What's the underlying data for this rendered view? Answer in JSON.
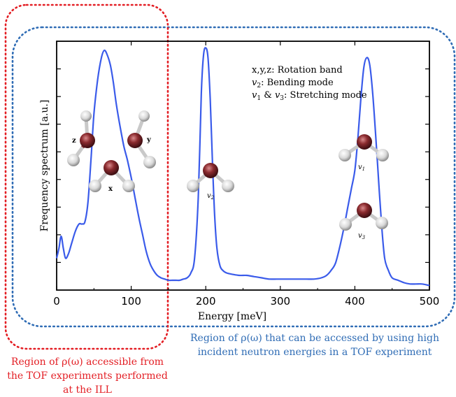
{
  "chart_data": {
    "type": "line",
    "xlabel": "Energy [meV]",
    "ylabel": "Frequency spectrum [a.u.]",
    "xlim": [
      0,
      500
    ],
    "ylim": [
      0,
      1
    ],
    "x_ticks": [
      "0",
      "100",
      "200",
      "300",
      "400",
      "500"
    ],
    "grid": false,
    "series": [
      {
        "color": "#3a5bea",
        "x": [
          0,
          3,
          6,
          9,
          12,
          16,
          20,
          25,
          30,
          34,
          38,
          42,
          46,
          50,
          55,
          60,
          64,
          68,
          72,
          76,
          80,
          85,
          90,
          95,
          100,
          105,
          110,
          115,
          120,
          125,
          130,
          135,
          140,
          145,
          150,
          155,
          160,
          165,
          170,
          175,
          180,
          185,
          190,
          194,
          197,
          200,
          203,
          206,
          209,
          212,
          215,
          219,
          223,
          228,
          235,
          245,
          255,
          265,
          275,
          285,
          295,
          305,
          315,
          325,
          335,
          345,
          355,
          362,
          368,
          374,
          380,
          385,
          390,
          395,
          400,
          404,
          408,
          412,
          416,
          420,
          424,
          428,
          432,
          436,
          440,
          445,
          450,
          458,
          466,
          474,
          482,
          490,
          498,
          500
        ],
        "y": [
          0.13,
          0.17,
          0.22,
          0.17,
          0.13,
          0.15,
          0.19,
          0.24,
          0.27,
          0.27,
          0.28,
          0.36,
          0.53,
          0.72,
          0.86,
          0.95,
          0.98,
          0.96,
          0.92,
          0.85,
          0.76,
          0.67,
          0.59,
          0.53,
          0.46,
          0.38,
          0.3,
          0.23,
          0.16,
          0.11,
          0.08,
          0.06,
          0.05,
          0.045,
          0.04,
          0.04,
          0.04,
          0.04,
          0.045,
          0.05,
          0.07,
          0.13,
          0.38,
          0.8,
          0.96,
          0.99,
          0.95,
          0.78,
          0.52,
          0.3,
          0.17,
          0.1,
          0.08,
          0.07,
          0.065,
          0.06,
          0.06,
          0.055,
          0.05,
          0.045,
          0.045,
          0.045,
          0.045,
          0.045,
          0.045,
          0.045,
          0.05,
          0.06,
          0.08,
          0.11,
          0.18,
          0.25,
          0.33,
          0.41,
          0.49,
          0.62,
          0.78,
          0.91,
          0.95,
          0.92,
          0.8,
          0.63,
          0.44,
          0.26,
          0.13,
          0.08,
          0.05,
          0.04,
          0.03,
          0.025,
          0.025,
          0.025,
          0.02,
          0.02
        ]
      }
    ]
  },
  "legend_text": {
    "line1": "x,y,z: Rotation band",
    "line2_mode": "v",
    "line2_sub": "2",
    "line2_rest": ": Bending mode",
    "line3_a": "v",
    "line3_a_sub": "1",
    "line3_mid": " & ",
    "line3_b": "v",
    "line3_b_sub": "3",
    "line3_rest": ": Stretching mode"
  },
  "molecule_labels": {
    "z": "z",
    "y": "y",
    "x": "x",
    "v2": "v",
    "v2_sub": "2",
    "v1": "v",
    "v1_sub": "1",
    "v3": "v",
    "v3_sub": "3"
  },
  "colors": {
    "ill_box": "#e31e24",
    "tof_box": "#2f6cb5",
    "spectrum": "#3a5bea",
    "oxygen": "#8a2a2e",
    "hydrogen": "#d9d9d9"
  },
  "captions": {
    "ill_line1": "Region of ρ(ω) accessible from",
    "ill_line2": "the TOF experiments performed",
    "ill_line3": "at the ILL",
    "tof_line1": "Region of ρ(ω)  that can be accessed by using high",
    "tof_line2": "incident neutron energies in a TOF experiment"
  }
}
